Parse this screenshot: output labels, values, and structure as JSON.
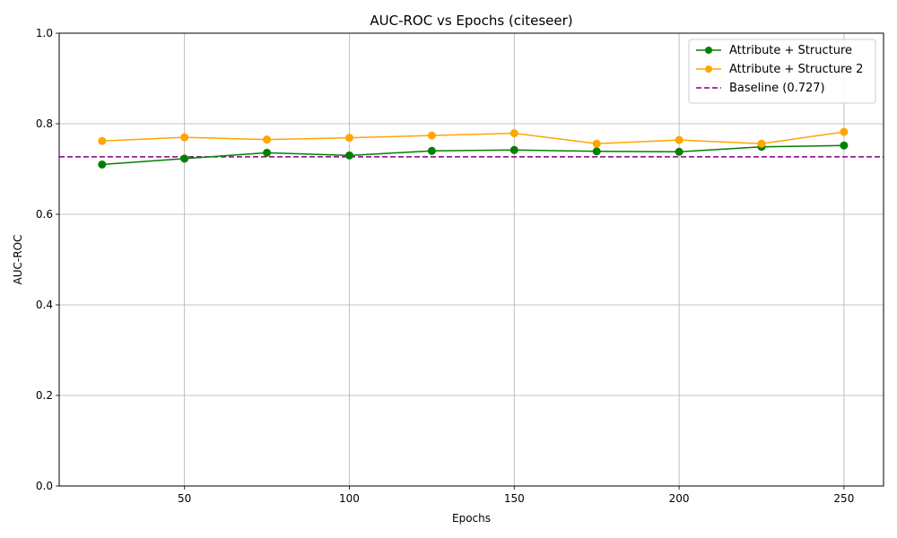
{
  "chart_data": {
    "type": "line",
    "title": "AUC-ROC vs Epochs (citeseer)",
    "xlabel": "Epochs",
    "ylabel": "AUC-ROC",
    "xlim": [
      12,
      262
    ],
    "ylim": [
      0.0,
      1.0
    ],
    "xticks": [
      50,
      100,
      150,
      200,
      250
    ],
    "yticks": [
      0.0,
      0.2,
      0.4,
      0.6,
      0.8,
      1.0
    ],
    "ytick_labels": [
      "0.0",
      "0.2",
      "0.4",
      "0.6",
      "0.8",
      "1.0"
    ],
    "grid": true,
    "legend_position": "top-right",
    "x": [
      25,
      50,
      75,
      100,
      125,
      150,
      175,
      200,
      225,
      250
    ],
    "series": [
      {
        "name": "Attribute + Structure",
        "color": "#008000",
        "marker": "circle",
        "values": [
          0.71,
          0.723,
          0.736,
          0.73,
          0.74,
          0.742,
          0.739,
          0.738,
          0.749,
          0.752
        ]
      },
      {
        "name": "Attribute + Structure 2",
        "color": "#FFA500",
        "marker": "circle",
        "values": [
          0.762,
          0.77,
          0.765,
          0.769,
          0.774,
          0.779,
          0.756,
          0.764,
          0.756,
          0.782
        ]
      }
    ],
    "baseline": {
      "name": "Baseline (0.727)",
      "value": 0.727,
      "color": "#800080",
      "style": "dashed"
    }
  }
}
